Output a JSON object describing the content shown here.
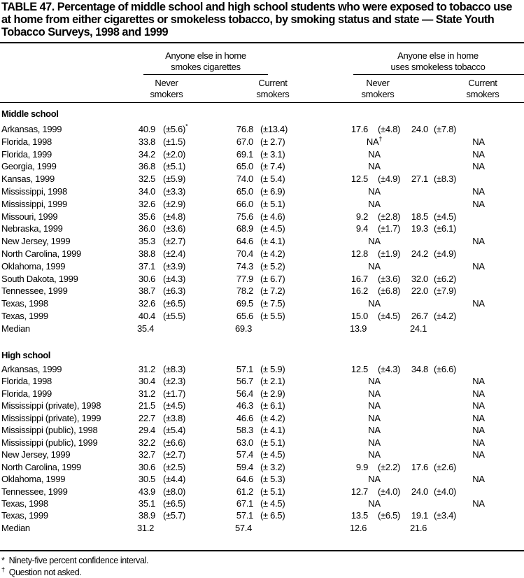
{
  "title": "TABLE 47.  Percentage of middle school and high school students who were exposed to tobacco use at home from either cigarettes or smokeless tobacco, by smoking status and state — State Youth Tobacco Surveys, 1998 and 1999",
  "column_groups": [
    {
      "label_line1": "Anyone else in home",
      "label_line2": "smokes cigarettes"
    },
    {
      "label_line1": "Anyone else in home",
      "label_line2": "uses smokeless tobacco"
    }
  ],
  "subcolumns": [
    {
      "line1": "Never",
      "line2": "smokers"
    },
    {
      "line1": "Current",
      "line2": "smokers"
    },
    {
      "line1": "Never",
      "line2": "smokers"
    },
    {
      "line1": "Current",
      "line2": "smokers"
    }
  ],
  "sections": [
    {
      "label": "Middle school",
      "rows": [
        {
          "label": "Arkansas, 1999",
          "cells": [
            [
              "40.9",
              "(±5.6)",
              "*"
            ],
            [
              "76.8",
              "(±13.4)"
            ],
            [
              "17.6",
              "(±4.8)"
            ],
            [
              "24.0",
              "(±7.8)"
            ]
          ]
        },
        {
          "label": "Florida, 1998",
          "cells": [
            [
              "33.8",
              "(±1.5)"
            ],
            [
              "67.0",
              "(± 2.7)"
            ],
            [
              "NA",
              "",
              "†"
            ],
            [
              "NA"
            ]
          ]
        },
        {
          "label": "Florida, 1999",
          "cells": [
            [
              "34.2",
              "(±2.0)"
            ],
            [
              "69.1",
              "(± 3.1)"
            ],
            [
              "NA"
            ],
            [
              "NA"
            ]
          ]
        },
        {
          "label": "Georgia, 1999",
          "cells": [
            [
              "36.8",
              "(±5.1)"
            ],
            [
              "65.0",
              "(± 7.4)"
            ],
            [
              "NA"
            ],
            [
              "NA"
            ]
          ]
        },
        {
          "label": "Kansas, 1999",
          "cells": [
            [
              "32.5",
              "(±5.9)"
            ],
            [
              "74.0",
              "(± 5.4)"
            ],
            [
              "12.5",
              "(±4.9)"
            ],
            [
              "27.1",
              "(±8.3)"
            ]
          ]
        },
        {
          "label": "Mississippi, 1998",
          "cells": [
            [
              "34.0",
              "(±3.3)"
            ],
            [
              "65.0",
              "(± 6.9)"
            ],
            [
              "NA"
            ],
            [
              "NA"
            ]
          ]
        },
        {
          "label": "Mississippi, 1999",
          "cells": [
            [
              "32.6",
              "(±2.9)"
            ],
            [
              "66.0",
              "(± 5.1)"
            ],
            [
              "NA"
            ],
            [
              "NA"
            ]
          ]
        },
        {
          "label": "Missouri, 1999",
          "cells": [
            [
              "35.6",
              "(±4.8)"
            ],
            [
              "75.6",
              "(± 4.6)"
            ],
            [
              "9.2",
              "(±2.8)"
            ],
            [
              "18.5",
              "(±4.5)"
            ]
          ]
        },
        {
          "label": "Nebraska, 1999",
          "cells": [
            [
              "36.0",
              "(±3.6)"
            ],
            [
              "68.9",
              "(± 4.5)"
            ],
            [
              "9.4",
              "(±1.7)"
            ],
            [
              "19.3",
              "(±6.1)"
            ]
          ]
        },
        {
          "label": "New Jersey, 1999",
          "cells": [
            [
              "35.3",
              "(±2.7)"
            ],
            [
              "64.6",
              "(± 4.1)"
            ],
            [
              "NA"
            ],
            [
              "NA"
            ]
          ]
        },
        {
          "label": "North Carolina, 1999",
          "cells": [
            [
              "38.8",
              "(±2.4)"
            ],
            [
              "70.4",
              "(± 4.2)"
            ],
            [
              "12.8",
              "(±1.9)"
            ],
            [
              "24.2",
              "(±4.9)"
            ]
          ]
        },
        {
          "label": "Oklahoma, 1999",
          "cells": [
            [
              "37.1",
              "(±3.9)"
            ],
            [
              "74.3",
              "(± 5.2)"
            ],
            [
              "NA"
            ],
            [
              "NA"
            ]
          ]
        },
        {
          "label": "South Dakota, 1999",
          "cells": [
            [
              "30.6",
              "(±4.3)"
            ],
            [
              "77.9",
              "(± 6.7)"
            ],
            [
              "16.7",
              "(±3.6)"
            ],
            [
              "32.0",
              "(±6.2)"
            ]
          ]
        },
        {
          "label": "Tennessee, 1999",
          "cells": [
            [
              "38.7",
              "(±6.3)"
            ],
            [
              "78.2",
              "(± 7.2)"
            ],
            [
              "16.2",
              "(±6.8)"
            ],
            [
              "22.0",
              "(±7.9)"
            ]
          ]
        },
        {
          "label": "Texas, 1998",
          "cells": [
            [
              "32.6",
              "(±6.5)"
            ],
            [
              "69.5",
              "(± 7.5)"
            ],
            [
              "NA"
            ],
            [
              "NA"
            ]
          ]
        },
        {
          "label": "Texas, 1999",
          "cells": [
            [
              "40.4",
              "(±5.5)"
            ],
            [
              "65.6",
              "(± 5.5)"
            ],
            [
              "15.0",
              "(±4.5)"
            ],
            [
              "26.7",
              "(±4.2)"
            ]
          ]
        },
        {
          "label": "Median",
          "cells": [
            [
              "35.4",
              ""
            ],
            [
              "69.3",
              ""
            ],
            [
              "13.9",
              ""
            ],
            [
              "24.1",
              ""
            ]
          ]
        }
      ]
    },
    {
      "label": "High school",
      "rows": [
        {
          "label": "Arkansas, 1999",
          "cells": [
            [
              "31.2",
              "(±8.3)"
            ],
            [
              "57.1",
              "(± 5.9)"
            ],
            [
              "12.5",
              "(±4.3)"
            ],
            [
              "34.8",
              "(±6.6)"
            ]
          ]
        },
        {
          "label": "Florida, 1998",
          "cells": [
            [
              "30.4",
              "(±2.3)"
            ],
            [
              "56.7",
              "(± 2.1)"
            ],
            [
              "NA"
            ],
            [
              "NA"
            ]
          ]
        },
        {
          "label": "Florida, 1999",
          "cells": [
            [
              "31.2",
              "(±1.7)"
            ],
            [
              "56.4",
              "(± 2.9)"
            ],
            [
              "NA"
            ],
            [
              "NA"
            ]
          ]
        },
        {
          "label": "Mississippi (private), 1998",
          "cells": [
            [
              "21.5",
              "(±4.5)"
            ],
            [
              "46.3",
              "(± 6.1)"
            ],
            [
              "NA"
            ],
            [
              "NA"
            ]
          ]
        },
        {
          "label": "Mississippi (private), 1999",
          "cells": [
            [
              "22.7",
              "(±3.8)"
            ],
            [
              "46.6",
              "(± 4.2)"
            ],
            [
              "NA"
            ],
            [
              "NA"
            ]
          ]
        },
        {
          "label": "Mississippi (public), 1998",
          "cells": [
            [
              "29.4",
              "(±5.4)"
            ],
            [
              "58.3",
              "(± 4.1)"
            ],
            [
              "NA"
            ],
            [
              "NA"
            ]
          ]
        },
        {
          "label": "Mississippi (public), 1999",
          "cells": [
            [
              "32.2",
              "(±6.6)"
            ],
            [
              "63.0",
              "(± 5.1)"
            ],
            [
              "NA"
            ],
            [
              "NA"
            ]
          ]
        },
        {
          "label": "New Jersey, 1999",
          "cells": [
            [
              "32.7",
              "(±2.7)"
            ],
            [
              "57.4",
              "(± 4.5)"
            ],
            [
              "NA"
            ],
            [
              "NA"
            ]
          ]
        },
        {
          "label": "North Carolina, 1999",
          "cells": [
            [
              "30.6",
              "(±2.5)"
            ],
            [
              "59.4",
              "(± 3.2)"
            ],
            [
              "9.9",
              "(±2.2)"
            ],
            [
              "17.6",
              "(±2.6)"
            ]
          ]
        },
        {
          "label": "Oklahoma, 1999",
          "cells": [
            [
              "30.5",
              "(±4.4)"
            ],
            [
              "64.6",
              "(± 5.3)"
            ],
            [
              "NA"
            ],
            [
              "NA"
            ]
          ]
        },
        {
          "label": "Tennessee, 1999",
          "cells": [
            [
              "43.9",
              "(±8.0)"
            ],
            [
              "61.2",
              "(± 5.1)"
            ],
            [
              "12.7",
              "(±4.0)"
            ],
            [
              "24.0",
              "(±4.0)"
            ]
          ]
        },
        {
          "label": "Texas, 1998",
          "cells": [
            [
              "35.1",
              "(±6.5)"
            ],
            [
              "67.1",
              "(± 4.5)"
            ],
            [
              "NA"
            ],
            [
              "NA"
            ]
          ]
        },
        {
          "label": "Texas, 1999",
          "cells": [
            [
              "38.9",
              "(±5.7)"
            ],
            [
              "57.1",
              "(± 6.5)"
            ],
            [
              "13.5",
              "(±6.5)"
            ],
            [
              "19.1",
              "(±3.4)"
            ]
          ]
        },
        {
          "label": "Median",
          "cells": [
            [
              "31.2",
              ""
            ],
            [
              "57.4",
              ""
            ],
            [
              "12.6",
              ""
            ],
            [
              "21.6",
              ""
            ]
          ]
        }
      ]
    }
  ],
  "footnotes": [
    {
      "mark": "*",
      "text": "Ninety-five percent confidence interval."
    },
    {
      "mark": "†",
      "text": "Question not asked."
    }
  ]
}
